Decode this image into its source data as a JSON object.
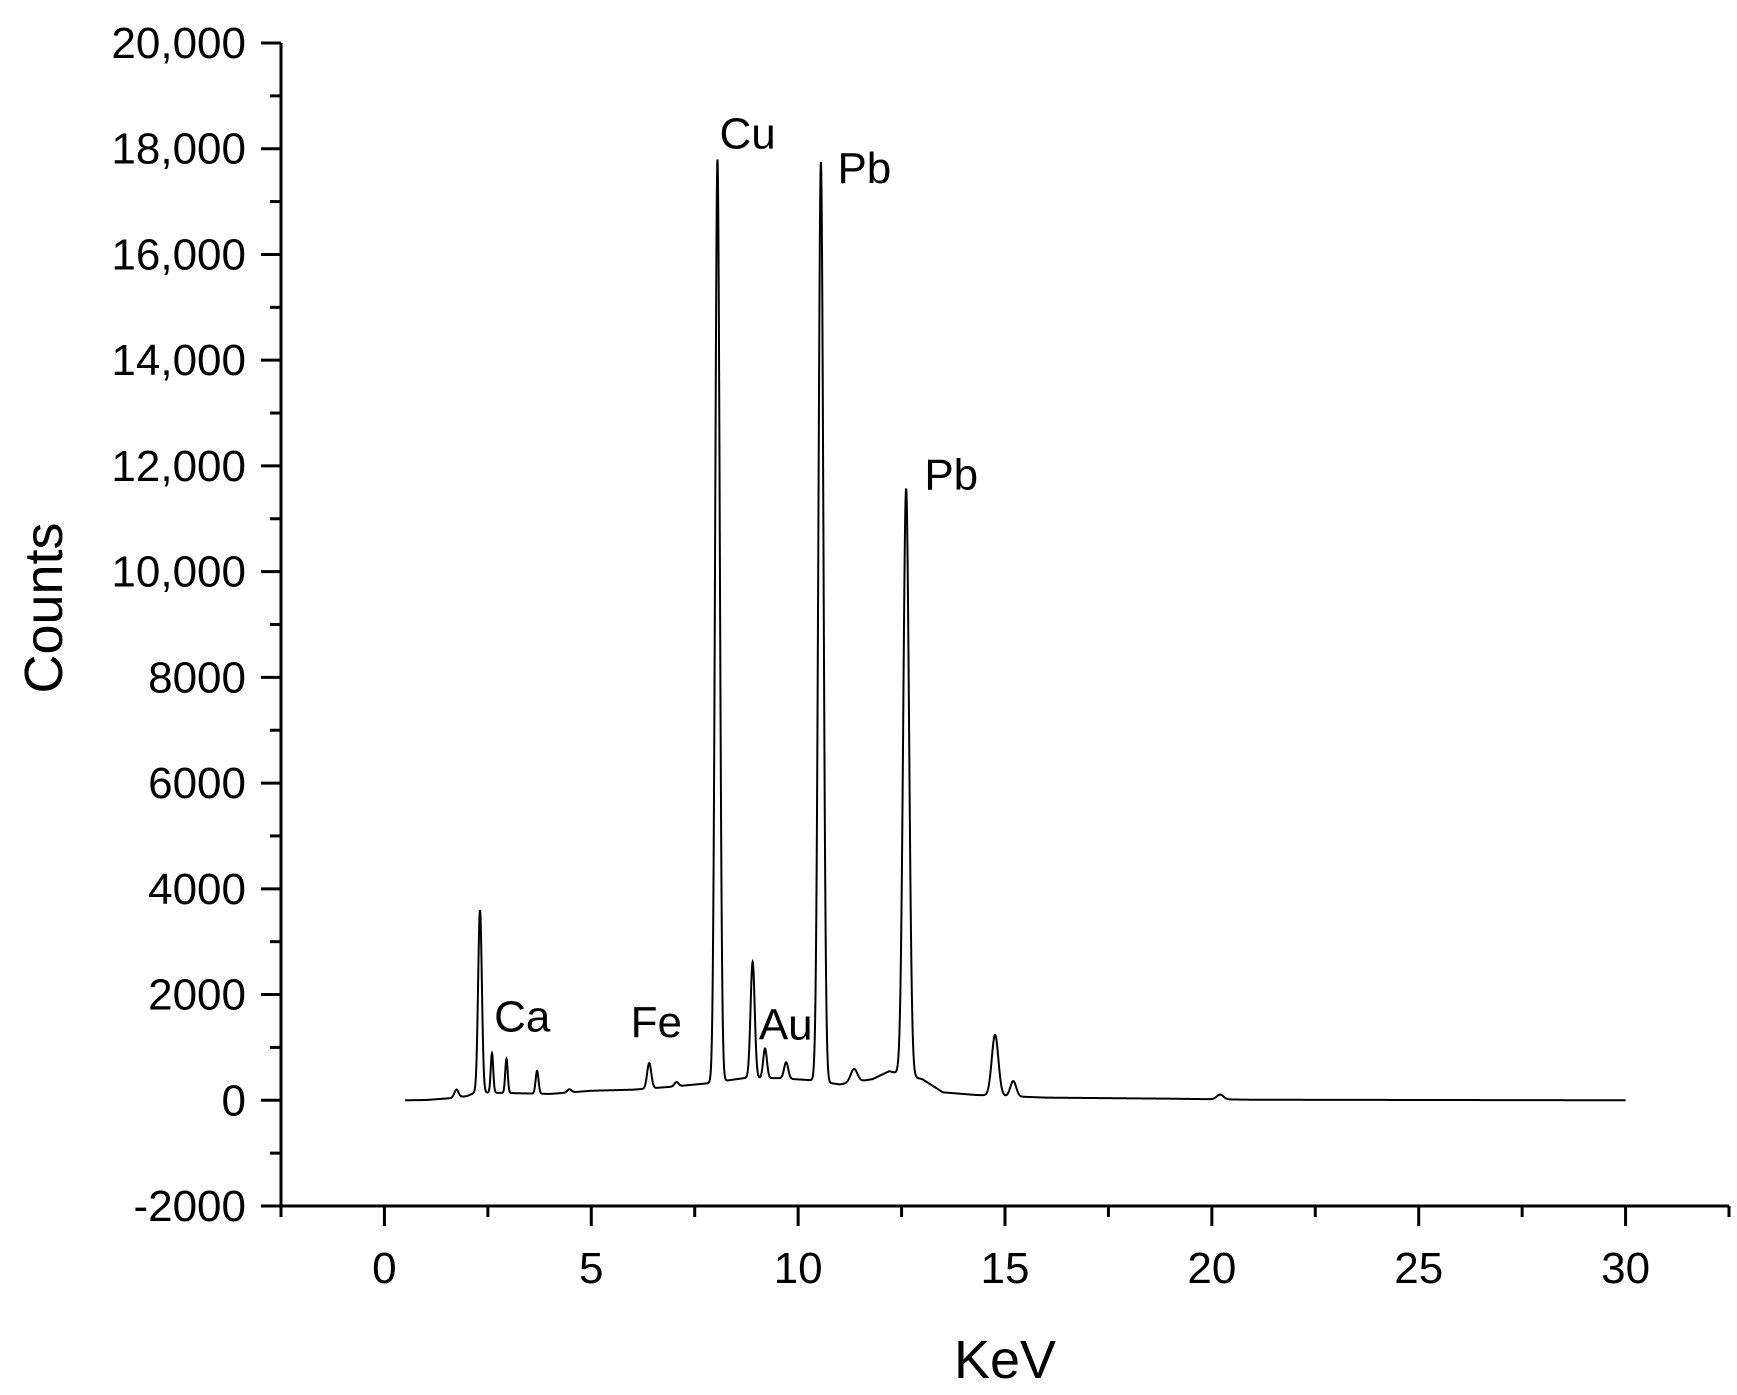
{
  "chart_data": {
    "type": "line",
    "title": "",
    "xlabel": "KeV",
    "ylabel": "Counts",
    "xlim": [
      -2.5,
      32.5
    ],
    "ylim": [
      -2000,
      20000
    ],
    "grid": false,
    "x_ticks": [
      0,
      5,
      10,
      15,
      20,
      25,
      30
    ],
    "x_tick_labels": [
      "0",
      "5",
      "10",
      "15",
      "20",
      "25",
      "30"
    ],
    "y_ticks": [
      -2000,
      0,
      2000,
      4000,
      6000,
      8000,
      10000,
      12000,
      14000,
      16000,
      18000,
      20000
    ],
    "y_tick_labels": [
      "-2000",
      "0",
      "2000",
      "4000",
      "6000",
      "8000",
      "10,000",
      "12,000",
      "14,000",
      "16,000",
      "18,000",
      "20,000"
    ],
    "baseline": [
      [
        0.5,
        0
      ],
      [
        1.0,
        5
      ],
      [
        1.6,
        40
      ],
      [
        2.0,
        80
      ],
      [
        2.2,
        150
      ],
      [
        4.0,
        120
      ],
      [
        5.0,
        180
      ],
      [
        6.0,
        200
      ],
      [
        7.0,
        260
      ],
      [
        7.8,
        320
      ],
      [
        8.7,
        420
      ],
      [
        9.5,
        420
      ],
      [
        10.3,
        380
      ],
      [
        11.0,
        300
      ],
      [
        11.8,
        400
      ],
      [
        12.2,
        550
      ],
      [
        13.0,
        400
      ],
      [
        13.5,
        150
      ],
      [
        14.3,
        100
      ],
      [
        16.0,
        50
      ],
      [
        19.0,
        30
      ],
      [
        20.0,
        20
      ],
      [
        21.0,
        10
      ],
      [
        30.0,
        0
      ]
    ],
    "peaks": [
      {
        "x": 1.74,
        "height": 150,
        "width": 0.05
      },
      {
        "x": 2.31,
        "height": 3450,
        "width": 0.045
      },
      {
        "x": 2.6,
        "height": 750,
        "width": 0.03
      },
      {
        "x": 2.95,
        "height": 650,
        "width": 0.03
      },
      {
        "x": 3.69,
        "height": 430,
        "width": 0.035
      },
      {
        "x": 4.47,
        "height": 60,
        "width": 0.05
      },
      {
        "x": 6.4,
        "height": 480,
        "width": 0.05
      },
      {
        "x": 7.06,
        "height": 80,
        "width": 0.05
      },
      {
        "x": 8.05,
        "height": 17450,
        "width": 0.055
      },
      {
        "x": 8.9,
        "height": 2200,
        "width": 0.05
      },
      {
        "x": 9.2,
        "height": 560,
        "width": 0.045
      },
      {
        "x": 9.71,
        "height": 310,
        "width": 0.05
      },
      {
        "x": 10.55,
        "height": 17400,
        "width": 0.06
      },
      {
        "x": 11.35,
        "height": 250,
        "width": 0.08
      },
      {
        "x": 12.61,
        "height": 11100,
        "width": 0.07
      },
      {
        "x": 14.76,
        "height": 1150,
        "width": 0.08
      },
      {
        "x": 15.2,
        "height": 290,
        "width": 0.07
      },
      {
        "x": 20.2,
        "height": 90,
        "width": 0.08
      }
    ],
    "annotations": [
      {
        "text": "Ca",
        "x": 2.65,
        "y": 1300
      },
      {
        "text": "Fe",
        "x": 5.95,
        "y": 1200
      },
      {
        "text": "Cu",
        "x": 8.1,
        "y": 18000
      },
      {
        "text": "Au",
        "x": 9.05,
        "y": 1150
      },
      {
        "text": "Pb",
        "x": 10.95,
        "y": 17350
      },
      {
        "text": "Pb",
        "x": 13.05,
        "y": 11550
      }
    ],
    "colors": {
      "line": "#000000",
      "axis": "#000000",
      "background": "#ffffff"
    }
  }
}
